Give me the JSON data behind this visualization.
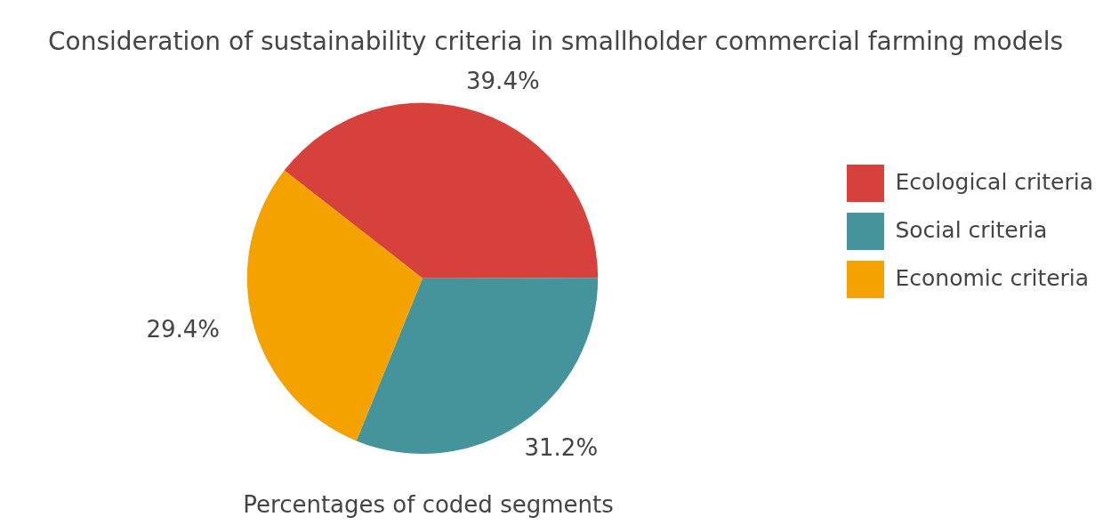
{
  "chart_data": {
    "type": "pie",
    "title": "Consideration of sustainability criteria in smallholder commercial farming models",
    "categories": [
      "Ecological criteria",
      "Social criteria",
      "Economic criteria"
    ],
    "values": [
      39.4,
      31.2,
      29.4
    ],
    "colors": [
      "#d6423b",
      "#45939b",
      "#f3a200"
    ],
    "value_labels": [
      "39.4%",
      "31.2%",
      "29.4%"
    ],
    "legend": "right",
    "annotations": [
      "Percentages of coded segments"
    ]
  }
}
